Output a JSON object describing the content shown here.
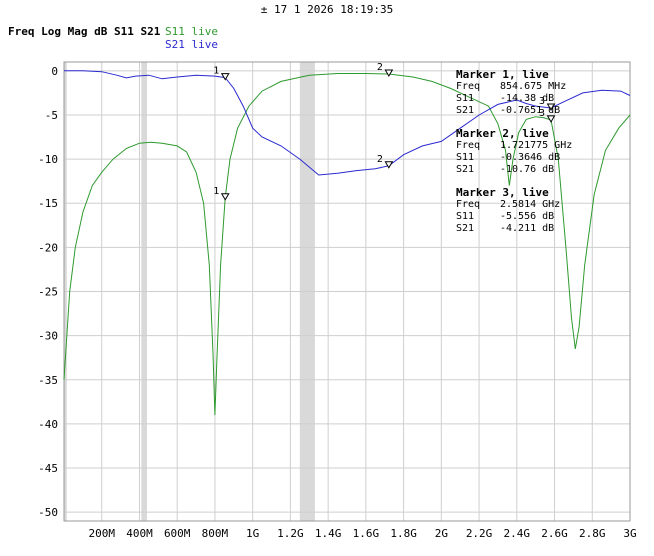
{
  "header": {
    "timestamp": "± 17 1 2026 18:19:35"
  },
  "chart_title": "Freq Log Mag dB S11 S21",
  "legend": [
    {
      "name": "S11 live",
      "color": "#2e9a2e"
    },
    {
      "name": "S21 live",
      "color": "#2a2ad0"
    }
  ],
  "markers_panel": [
    {
      "title": "Marker 1, live",
      "rows": [
        {
          "label": "Freq",
          "value": "854.675 MHz"
        },
        {
          "label": "S11",
          "value": "-14.38 dB"
        },
        {
          "label": "S21",
          "value": "-0.7651 dB"
        }
      ]
    },
    {
      "title": "Marker 2, live",
      "rows": [
        {
          "label": "Freq",
          "value": "1.721775 GHz"
        },
        {
          "label": "S11",
          "value": "-0.3646 dB"
        },
        {
          "label": "S21",
          "value": "-10.76 dB"
        }
      ]
    },
    {
      "title": "Marker 3, live",
      "rows": [
        {
          "label": "Freq",
          "value": "2.5814 GHz"
        },
        {
          "label": "S11",
          "value": "-5.556 dB"
        },
        {
          "label": "S21",
          "value": "-4.211 dB"
        }
      ]
    }
  ],
  "chart_data": {
    "type": "line",
    "title": "Freq Log Mag dB S11 S21",
    "xlabel": "",
    "ylabel": "",
    "xlim": [
      0,
      3000
    ],
    "ylim": [
      -51,
      1
    ],
    "x_ticks": [
      {
        "value": 200,
        "label": "200M"
      },
      {
        "value": 400,
        "label": "400M"
      },
      {
        "value": 600,
        "label": "600M"
      },
      {
        "value": 800,
        "label": "800M"
      },
      {
        "value": 1000,
        "label": "1G"
      },
      {
        "value": 1200,
        "label": "1.2G"
      },
      {
        "value": 1400,
        "label": "1.4G"
      },
      {
        "value": 1600,
        "label": "1.6G"
      },
      {
        "value": 1800,
        "label": "1.8G"
      },
      {
        "value": 2000,
        "label": "2G"
      },
      {
        "value": 2200,
        "label": "2.2G"
      },
      {
        "value": 2400,
        "label": "2.4G"
      },
      {
        "value": 2600,
        "label": "2.6G"
      },
      {
        "value": 2800,
        "label": "2.8G"
      },
      {
        "value": 3000,
        "label": "3G"
      }
    ],
    "y_ticks": [
      {
        "value": 0,
        "label": "0"
      },
      {
        "value": -5,
        "label": "-5"
      },
      {
        "value": -10,
        "label": "-10"
      },
      {
        "value": -15,
        "label": "-15"
      },
      {
        "value": -20,
        "label": "-20"
      },
      {
        "value": -25,
        "label": "-25"
      },
      {
        "value": -30,
        "label": "-30"
      },
      {
        "value": -35,
        "label": "-35"
      },
      {
        "value": -40,
        "label": "-40"
      },
      {
        "value": -45,
        "label": "-45"
      },
      {
        "value": -50,
        "label": "-50"
      }
    ],
    "grid": true,
    "shaded_bands": [
      [
        0,
        15
      ],
      [
        410,
        440
      ],
      [
        1250,
        1330
      ]
    ],
    "series": [
      {
        "name": "S11 live",
        "color": "#2e9a2e",
        "points": [
          [
            0,
            -35
          ],
          [
            30,
            -25
          ],
          [
            60,
            -20
          ],
          [
            100,
            -16
          ],
          [
            150,
            -13
          ],
          [
            200,
            -11.5
          ],
          [
            260,
            -10
          ],
          [
            330,
            -8.8
          ],
          [
            400,
            -8.2
          ],
          [
            460,
            -8.1
          ],
          [
            520,
            -8.2
          ],
          [
            600,
            -8.5
          ],
          [
            650,
            -9.2
          ],
          [
            700,
            -11.5
          ],
          [
            740,
            -15
          ],
          [
            770,
            -22
          ],
          [
            790,
            -32
          ],
          [
            800,
            -39
          ],
          [
            810,
            -33
          ],
          [
            830,
            -22
          ],
          [
            854.675,
            -14.38
          ],
          [
            880,
            -10
          ],
          [
            920,
            -6.5
          ],
          [
            980,
            -4
          ],
          [
            1050,
            -2.3
          ],
          [
            1150,
            -1.2
          ],
          [
            1300,
            -0.5
          ],
          [
            1450,
            -0.3
          ],
          [
            1600,
            -0.3
          ],
          [
            1721.775,
            -0.3646
          ],
          [
            1850,
            -0.7
          ],
          [
            1950,
            -1.2
          ],
          [
            2050,
            -2
          ],
          [
            2150,
            -3
          ],
          [
            2250,
            -4
          ],
          [
            2300,
            -6
          ],
          [
            2340,
            -9
          ],
          [
            2360,
            -13
          ],
          [
            2380,
            -10
          ],
          [
            2410,
            -7
          ],
          [
            2450,
            -5.5
          ],
          [
            2500,
            -5.2
          ],
          [
            2540,
            -5.3
          ],
          [
            2581.4,
            -5.556
          ],
          [
            2620,
            -10
          ],
          [
            2660,
            -20
          ],
          [
            2690,
            -28
          ],
          [
            2710,
            -31.5
          ],
          [
            2730,
            -29
          ],
          [
            2760,
            -22
          ],
          [
            2810,
            -14
          ],
          [
            2870,
            -9
          ],
          [
            2940,
            -6.5
          ],
          [
            3000,
            -5
          ]
        ]
      },
      {
        "name": "S21 live",
        "color": "#2a2ad0",
        "points": [
          [
            0,
            0
          ],
          [
            100,
            0
          ],
          [
            200,
            -0.1
          ],
          [
            280,
            -0.5
          ],
          [
            330,
            -0.8
          ],
          [
            380,
            -0.6
          ],
          [
            450,
            -0.5
          ],
          [
            520,
            -0.9
          ],
          [
            600,
            -0.7
          ],
          [
            700,
            -0.5
          ],
          [
            800,
            -0.6
          ],
          [
            854.675,
            -0.7651
          ],
          [
            900,
            -2
          ],
          [
            950,
            -4
          ],
          [
            1000,
            -6.5
          ],
          [
            1050,
            -7.5
          ],
          [
            1150,
            -8.5
          ],
          [
            1250,
            -10
          ],
          [
            1350,
            -11.8
          ],
          [
            1450,
            -11.6
          ],
          [
            1550,
            -11.3
          ],
          [
            1650,
            -11.1
          ],
          [
            1721.775,
            -10.76
          ],
          [
            1800,
            -9.5
          ],
          [
            1900,
            -8.5
          ],
          [
            2000,
            -8
          ],
          [
            2100,
            -6.5
          ],
          [
            2200,
            -5
          ],
          [
            2300,
            -3.8
          ],
          [
            2400,
            -3.3
          ],
          [
            2450,
            -3.7
          ],
          [
            2500,
            -4
          ],
          [
            2581.4,
            -4.211
          ],
          [
            2650,
            -3.5
          ],
          [
            2750,
            -2.5
          ],
          [
            2850,
            -2.2
          ],
          [
            2950,
            -2.3
          ],
          [
            3000,
            -2.8
          ]
        ]
      }
    ],
    "markers": [
      {
        "id": "1",
        "x": 854.675,
        "s11": -14.38,
        "s21": -0.7651
      },
      {
        "id": "2",
        "x": 1721.775,
        "s11": -0.3646,
        "s21": -10.76
      },
      {
        "id": "3",
        "x": 2581.4,
        "s11": -5.556,
        "s21": -4.211
      }
    ]
  }
}
